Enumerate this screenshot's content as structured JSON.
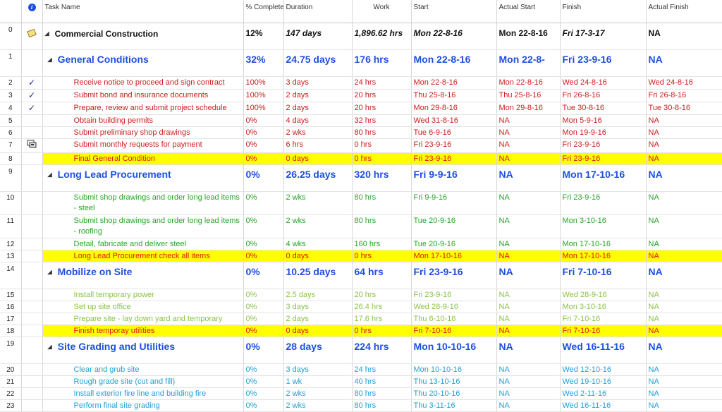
{
  "columns": {
    "indicator": "i",
    "task_name": "Task Name",
    "pct_complete": "% Complete",
    "duration": "Duration",
    "work": "Work",
    "start": "Start",
    "actual_start": "Actual Start",
    "finish": "Finish",
    "actual_finish": "Actual Finish"
  },
  "colors": {
    "summary": "#1f4fe0",
    "red": "#cc1e1e",
    "green": "#26a526",
    "lime": "#8bc34a",
    "cyan": "#1e9fd6",
    "highlight": "#ffff00",
    "orange": "#e8802a"
  },
  "rows": [
    {
      "id": "0",
      "icon": "note-icon",
      "name": "Commercial Construction",
      "pct": "12%",
      "duration": "147 days",
      "work": "1,896.62 hrs",
      "start": "Mon 22-8-16",
      "actual_start": "Mon 22-8-16",
      "finish": "Fri 17-3-17",
      "actual_finish": "NA"
    },
    {
      "id": "1",
      "name": "General Conditions",
      "pct": "32%",
      "duration": "24.75 days",
      "work": "176 hrs",
      "start": "Mon 22-8-16",
      "actual_start": "Mon 22-8-",
      "finish": "Fri 23-9-16",
      "actual_finish": "NA"
    },
    {
      "id": "2",
      "icon": "checkmark-icon",
      "name": "Receive notice to proceed and sign contract",
      "pct": "100%",
      "duration": "3 days",
      "work": "24 hrs",
      "start": "Mon 22-8-16",
      "actual_start": "Mon 22-8-16",
      "finish": "Wed 24-8-16",
      "actual_finish": "Wed 24-8-16"
    },
    {
      "id": "3",
      "icon": "checkmark-icon",
      "name": "Submit bond and insurance documents",
      "pct": "100%",
      "duration": "2 days",
      "work": "20 hrs",
      "start": "Thu 25-8-16",
      "actual_start": "Thu 25-8-16",
      "finish": "Fri 26-8-16",
      "actual_finish": "Fri 26-8-16"
    },
    {
      "id": "4",
      "icon": "checkmark-icon",
      "name": "Prepare, review and submit project schedule",
      "pct": "100%",
      "duration": "2 days",
      "work": "20 hrs",
      "start": "Mon 29-8-16",
      "actual_start": "Mon 29-8-16",
      "finish": "Tue 30-8-16",
      "actual_finish": "Tue 30-8-16"
    },
    {
      "id": "5",
      "name": "Obtain building permits",
      "pct": "0%",
      "duration": "4 days",
      "work": "32 hrs",
      "start": "Wed 31-8-16",
      "actual_start": "NA",
      "finish": "Mon 5-9-16",
      "actual_finish": "NA"
    },
    {
      "id": "6",
      "name": "Submit preliminary shop drawings",
      "pct": "0%",
      "duration": "2 wks",
      "work": "80 hrs",
      "start": "Tue 6-9-16",
      "actual_start": "NA",
      "finish": "Mon 19-9-16",
      "actual_finish": "NA"
    },
    {
      "id": "7",
      "icon": "recurring-task-icon",
      "name": "Submit monthly requests for payment",
      "pct": "0%",
      "duration": "6 hrs",
      "work": "0 hrs",
      "start": "Fri 23-9-16",
      "actual_start": "NA",
      "finish": "Fri 23-9-16",
      "actual_finish": "NA"
    },
    {
      "id": "8",
      "name": "Final General Condition",
      "pct": "0%",
      "duration": "0 days",
      "work": "0 hrs",
      "start": "Fri 23-9-16",
      "actual_start": "NA",
      "finish": "Fri 23-9-16",
      "actual_finish": "NA"
    },
    {
      "id": "9",
      "name": "Long Lead Procurement",
      "pct": "0%",
      "duration": "26.25 days",
      "work": "320 hrs",
      "start": "Fri 9-9-16",
      "actual_start": "NA",
      "finish": "Mon 17-10-16",
      "actual_finish": "NA"
    },
    {
      "id": "10",
      "name": "Submit shop drawings and order long lead items - steel",
      "pct": "0%",
      "duration": "2 wks",
      "work": "80 hrs",
      "start": "Fri 9-9-16",
      "actual_start": "NA",
      "finish": "Fri 23-9-16",
      "actual_finish": "NA"
    },
    {
      "id": "11",
      "name": "Submit shop drawings and order long lead items - roofing",
      "pct": "0%",
      "duration": "2 wks",
      "work": "80 hrs",
      "start": "Tue 20-9-16",
      "actual_start": "NA",
      "finish": "Mon 3-10-16",
      "actual_finish": "NA"
    },
    {
      "id": "12",
      "name": "Detail, fabricate and deliver steel",
      "pct": "0%",
      "duration": "4 wks",
      "work": "160 hrs",
      "start": "Tue 20-9-16",
      "actual_start": "NA",
      "finish": "Mon 17-10-16",
      "actual_finish": "NA"
    },
    {
      "id": "13",
      "name": "Long Lead Procurement check all items",
      "pct": "0%",
      "duration": "0 days",
      "work": "0 hrs",
      "start": "Mon 17-10-16",
      "actual_start": "NA",
      "finish": "Mon 17-10-16",
      "actual_finish": "NA"
    },
    {
      "id": "14",
      "name": "Mobilize on Site",
      "pct": "0%",
      "duration": "10.25 days",
      "work": "64 hrs",
      "start": "Fri 23-9-16",
      "actual_start": "NA",
      "finish": "Fri 7-10-16",
      "actual_finish": "NA"
    },
    {
      "id": "15",
      "name": "Install temporary power",
      "pct": "0%",
      "duration": "2.5 days",
      "work": "20 hrs",
      "start": "Fri 23-9-16",
      "actual_start": "NA",
      "finish": "Wed 28-9-16",
      "actual_finish": "NA"
    },
    {
      "id": "16",
      "name": "Set up site office",
      "pct": "0%",
      "duration": "3 days",
      "work": "26.4 hrs",
      "start": "Wed 28-9-16",
      "actual_start": "NA",
      "finish": "Mon 3-10-16",
      "actual_finish": "NA"
    },
    {
      "id": "17",
      "name": "Prepare site - lay down yard and temporary",
      "pct": "0%",
      "duration": "2 days",
      "work": "17.6 hrs",
      "start": "Thu 6-10-16",
      "actual_start": "NA",
      "finish": "Fri 7-10-16",
      "actual_finish": "NA"
    },
    {
      "id": "18",
      "name": "Finish temporay utilities",
      "pct": "0%",
      "duration": "0 days",
      "work": "0 hrs",
      "start": "Fri 7-10-16",
      "actual_start": "NA",
      "finish": "Fri 7-10-16",
      "actual_finish": "NA"
    },
    {
      "id": "19",
      "name": "Site Grading and Utilities",
      "pct": "0%",
      "duration": "28 days",
      "work": "224 hrs",
      "start": "Mon 10-10-16",
      "actual_start": "NA",
      "finish": "Wed 16-11-16",
      "actual_finish": "NA"
    },
    {
      "id": "20",
      "name": "Clear and grub site",
      "pct": "0%",
      "duration": "3 days",
      "work": "24 hrs",
      "start": "Mon 10-10-16",
      "actual_start": "NA",
      "finish": "Wed 12-10-16",
      "actual_finish": "NA"
    },
    {
      "id": "21",
      "name": "Rough grade site (cut and fill)",
      "pct": "0%",
      "duration": "1 wk",
      "work": "40 hrs",
      "start": "Thu 13-10-16",
      "actual_start": "NA",
      "finish": "Wed 19-10-16",
      "actual_finish": "NA"
    },
    {
      "id": "22",
      "name": "Install exterior fire line and building fire",
      "pct": "0%",
      "duration": "2 wks",
      "work": "80 hrs",
      "start": "Thu 20-10-16",
      "actual_start": "NA",
      "finish": "Wed 2-11-16",
      "actual_finish": "NA"
    },
    {
      "id": "23",
      "name": "Perform final site grading",
      "pct": "0%",
      "duration": "2 wks",
      "work": "80 hrs",
      "start": "Thu 3-11-16",
      "actual_start": "NA",
      "finish": "Wed 16-11-16",
      "actual_finish": "NA"
    }
  ]
}
